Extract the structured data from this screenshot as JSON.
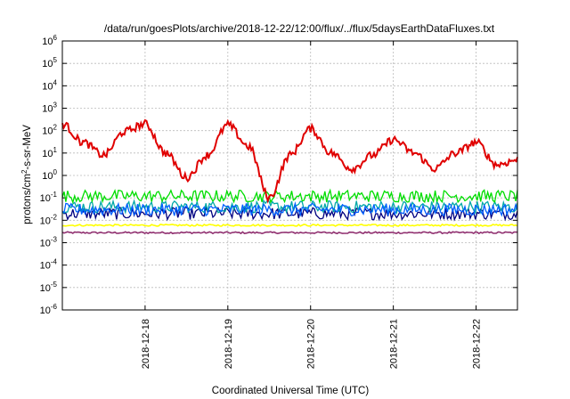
{
  "chart_data": {
    "type": "line",
    "title": "/data/run/goesPlots/archive/2018-12-22/12:00/flux/../flux/5daysEarthDataFluxes.txt",
    "xlabel": "Coordinated Universal Time (UTC)",
    "ylabel": "protons/cm²-s-sr-MeV",
    "yscale": "log",
    "ylim": [
      1e-06,
      1000000.0
    ],
    "xlim": [
      "2018-12-17 00:00",
      "2018-12-22 12:00"
    ],
    "x_ticks": [
      "2018-12-18",
      "2018-12-19",
      "2018-12-20",
      "2018-12-21",
      "2018-12-22"
    ],
    "y_ticks": [
      {
        "base": "10",
        "exp": "-6"
      },
      {
        "base": "10",
        "exp": "-5"
      },
      {
        "base": "10",
        "exp": "-4"
      },
      {
        "base": "10",
        "exp": "-3"
      },
      {
        "base": "10",
        "exp": "-2"
      },
      {
        "base": "10",
        "exp": "-1"
      },
      {
        "base": "10",
        "exp": "0"
      },
      {
        "base": "10",
        "exp": "1"
      },
      {
        "base": "10",
        "exp": "2"
      },
      {
        "base": "10",
        "exp": "3"
      },
      {
        "base": "10",
        "exp": "4"
      },
      {
        "base": "10",
        "exp": "5"
      },
      {
        "base": "10",
        "exp": "6"
      }
    ],
    "grid": true,
    "legend": "none",
    "series": [
      {
        "color": "#e00000",
        "x": [
          "2018-12-17 00:00",
          "2018-12-17 06:00",
          "2018-12-17 12:00",
          "2018-12-17 18:00",
          "2018-12-18 00:00",
          "2018-12-18 06:00",
          "2018-12-18 12:00",
          "2018-12-18 18:00",
          "2018-12-19 00:00",
          "2018-12-19 06:00",
          "2018-12-19 12:00",
          "2018-12-19 18:00",
          "2018-12-20 00:00",
          "2018-12-20 06:00",
          "2018-12-20 12:00",
          "2018-12-20 18:00",
          "2018-12-21 00:00",
          "2018-12-21 06:00",
          "2018-12-21 12:00",
          "2018-12-21 18:00",
          "2018-12-22 00:00",
          "2018-12-22 06:00",
          "2018-12-22 12:00"
        ],
        "values": [
          200,
          30,
          8,
          90,
          200,
          10,
          0.8,
          8,
          180,
          20,
          0.1,
          8,
          120,
          10,
          2,
          8,
          40,
          10,
          2,
          10,
          30,
          3,
          5
        ]
      },
      {
        "color": "#00dd00",
        "baseline": 0.12
      },
      {
        "color": "#00a8a8",
        "baseline": 0.04
      },
      {
        "color": "#0060ff",
        "baseline": 0.03
      },
      {
        "color": "#000080",
        "baseline": 0.02
      },
      {
        "color": "#ffff00",
        "baseline": 0.006
      },
      {
        "color": "#903070",
        "baseline": 0.0028
      }
    ]
  }
}
